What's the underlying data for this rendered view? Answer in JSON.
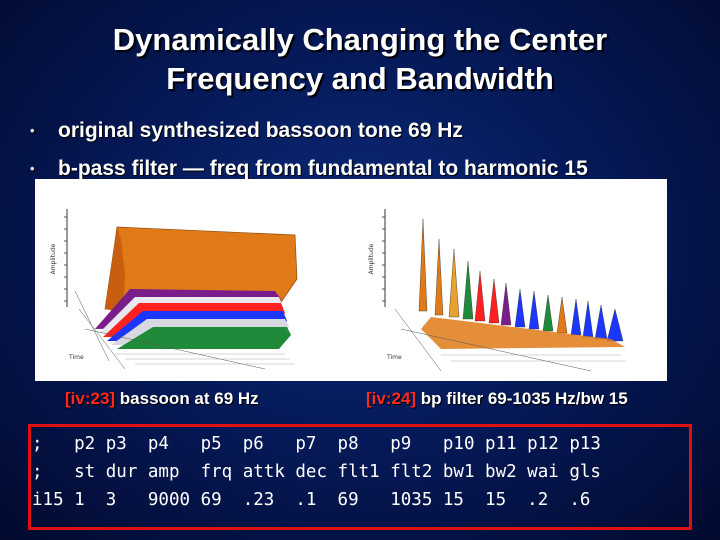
{
  "slide": {
    "title_line1": "Dynamically Changing the Center",
    "title_line2": "Frequency and Bandwidth",
    "bullets": [
      "original synthesized bassoon tone 69 Hz",
      "b-pass filter — freq from fundamental to harmonic 15"
    ],
    "bullet_glyph": "•"
  },
  "figure": {
    "left_axis_label": "Amplitude",
    "right_axis_label": "Amplitude",
    "left_bottom_label": "Time",
    "right_bottom_label": "Time"
  },
  "captions": {
    "left_tag": "[iv:23]",
    "left_text": " bassoon at 69 Hz",
    "right_tag": "[iv:24]",
    "right_text": " bp filter 69-1035 Hz/bw 15"
  },
  "score": {
    "lines": [
      ";   p2 p3  p4   p5  p6   p7  p8   p9   p10 p11 p12 p13",
      ";   st dur amp  frq attk dec flt1 flt2 bw1 bw2 wai gls",
      "i15 1  3   9000 69  .23  .1  69   1035 15  15  .2  .6"
    ]
  },
  "colors": {
    "accent": "#ff2a1a",
    "box_border": "#e01010",
    "background": "#061a5a"
  }
}
